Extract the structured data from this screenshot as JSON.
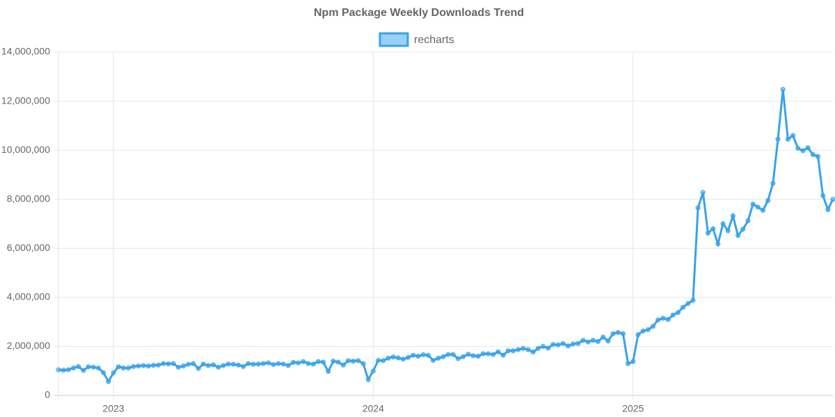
{
  "chart_data": {
    "type": "line",
    "title": "Npm Package Weekly Downloads Trend",
    "categories": [
      null,
      null,
      null,
      null,
      null,
      null,
      null,
      null,
      null,
      null,
      null,
      "2023",
      null,
      null,
      null,
      null,
      null,
      null,
      null,
      null,
      null,
      null,
      null,
      null,
      null,
      null,
      null,
      null,
      null,
      null,
      null,
      null,
      null,
      null,
      null,
      null,
      null,
      null,
      null,
      null,
      null,
      null,
      null,
      null,
      null,
      null,
      null,
      null,
      null,
      null,
      null,
      null,
      null,
      null,
      null,
      null,
      null,
      null,
      null,
      null,
      null,
      null,
      null,
      "2024",
      null,
      null,
      null,
      null,
      null,
      null,
      null,
      null,
      null,
      null,
      null,
      null,
      null,
      null,
      null,
      null,
      null,
      null,
      null,
      null,
      null,
      null,
      null,
      null,
      null,
      null,
      null,
      null,
      null,
      null,
      null,
      null,
      null,
      null,
      null,
      null,
      null,
      null,
      null,
      null,
      null,
      null,
      null,
      null,
      null,
      null,
      null,
      null,
      null,
      null,
      null,
      "2025",
      null,
      null,
      null,
      null,
      null,
      null,
      null,
      null,
      null,
      null,
      null,
      null,
      null,
      null,
      null,
      null,
      null,
      null,
      null,
      null,
      null,
      null,
      null,
      null,
      null,
      null,
      null,
      null,
      null,
      null,
      null,
      null,
      null,
      null,
      null,
      null,
      null,
      null,
      null,
      null
    ],
    "series": [
      {
        "name": "recharts",
        "color": "#36a2eb",
        "values": [
          1050000,
          1030000,
          1050000,
          1120000,
          1180000,
          1020000,
          1170000,
          1150000,
          1120000,
          930000,
          570000,
          920000,
          1170000,
          1120000,
          1120000,
          1180000,
          1200000,
          1220000,
          1200000,
          1230000,
          1240000,
          1300000,
          1290000,
          1300000,
          1150000,
          1200000,
          1270000,
          1300000,
          1100000,
          1280000,
          1220000,
          1250000,
          1150000,
          1220000,
          1280000,
          1270000,
          1240000,
          1180000,
          1300000,
          1270000,
          1280000,
          1300000,
          1330000,
          1260000,
          1300000,
          1280000,
          1220000,
          1350000,
          1330000,
          1380000,
          1300000,
          1280000,
          1380000,
          1360000,
          980000,
          1400000,
          1360000,
          1240000,
          1420000,
          1400000,
          1420000,
          1300000,
          650000,
          1000000,
          1430000,
          1420000,
          1520000,
          1570000,
          1530000,
          1480000,
          1550000,
          1640000,
          1600000,
          1660000,
          1640000,
          1430000,
          1520000,
          1580000,
          1670000,
          1670000,
          1500000,
          1580000,
          1680000,
          1620000,
          1600000,
          1700000,
          1700000,
          1670000,
          1780000,
          1640000,
          1820000,
          1820000,
          1870000,
          1920000,
          1870000,
          1770000,
          1920000,
          2000000,
          1930000,
          2080000,
          2060000,
          2120000,
          2020000,
          2100000,
          2120000,
          2250000,
          2180000,
          2250000,
          2200000,
          2380000,
          2220000,
          2520000,
          2570000,
          2520000,
          1300000,
          1380000,
          2480000,
          2630000,
          2680000,
          2820000,
          3080000,
          3150000,
          3100000,
          3280000,
          3380000,
          3600000,
          3750000,
          3880000,
          7650000,
          8280000,
          6620000,
          6800000,
          6180000,
          7000000,
          6720000,
          7320000,
          6520000,
          6780000,
          7120000,
          7800000,
          7680000,
          7550000,
          7950000,
          8650000,
          10450000,
          12480000,
          10450000,
          10600000,
          10080000,
          9980000,
          10100000,
          9820000,
          9750000,
          8150000,
          7580000,
          8000000
        ]
      }
    ],
    "ylim": [
      0,
      14000000
    ],
    "yticks": [
      0,
      {
        "value": 2000000,
        "label": "2,000,000"
      },
      {
        "value": 4000000,
        "label": "4,000,000"
      },
      {
        "value": 6000000,
        "label": "6,000,000"
      },
      {
        "value": 8000000,
        "label": "8,000,000"
      },
      {
        "value": 10000000,
        "label": "10,000,000"
      },
      {
        "value": 12000000,
        "label": "12,000,000"
      },
      {
        "value": 14000000,
        "label": "14,000,000"
      }
    ],
    "grid": true,
    "legend": "top"
  }
}
